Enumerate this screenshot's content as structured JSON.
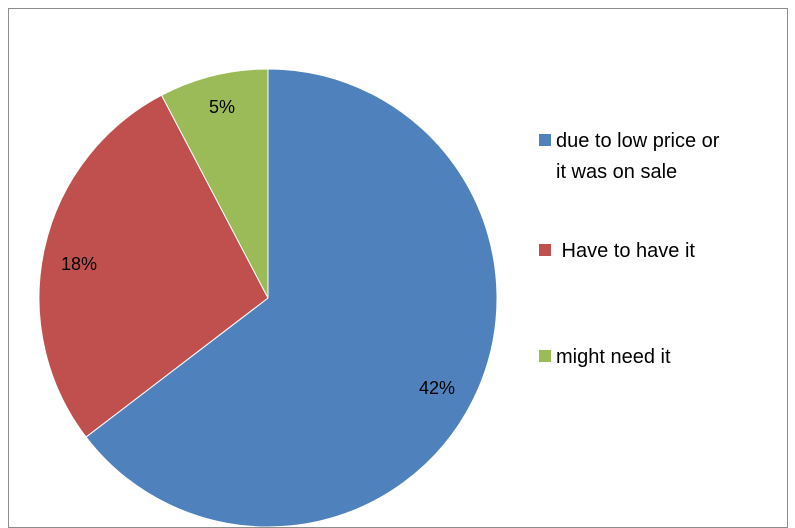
{
  "chart_data": {
    "type": "pie",
    "title": "",
    "start_angle_deg": 0,
    "direction": "clockwise",
    "slices": [
      {
        "label": "due to low price or it was on sale",
        "value": 42,
        "display": "42%",
        "color": "#4F81BD"
      },
      {
        "label": "Have to have it",
        "value": 18,
        "display": "18%",
        "color": "#C0504D"
      },
      {
        "label": "might need it",
        "value": 5,
        "display": "5%",
        "color": "#9BBB59"
      }
    ],
    "legend": {
      "placement": "right",
      "items": [
        {
          "lines": [
            "due to low price or",
            "it was on sale"
          ],
          "color": "#4F81BD"
        },
        {
          "lines": [
            " Have to have it"
          ],
          "color": "#C0504D"
        },
        {
          "lines": [
            "might need it"
          ],
          "color": "#9BBB59"
        }
      ]
    }
  }
}
